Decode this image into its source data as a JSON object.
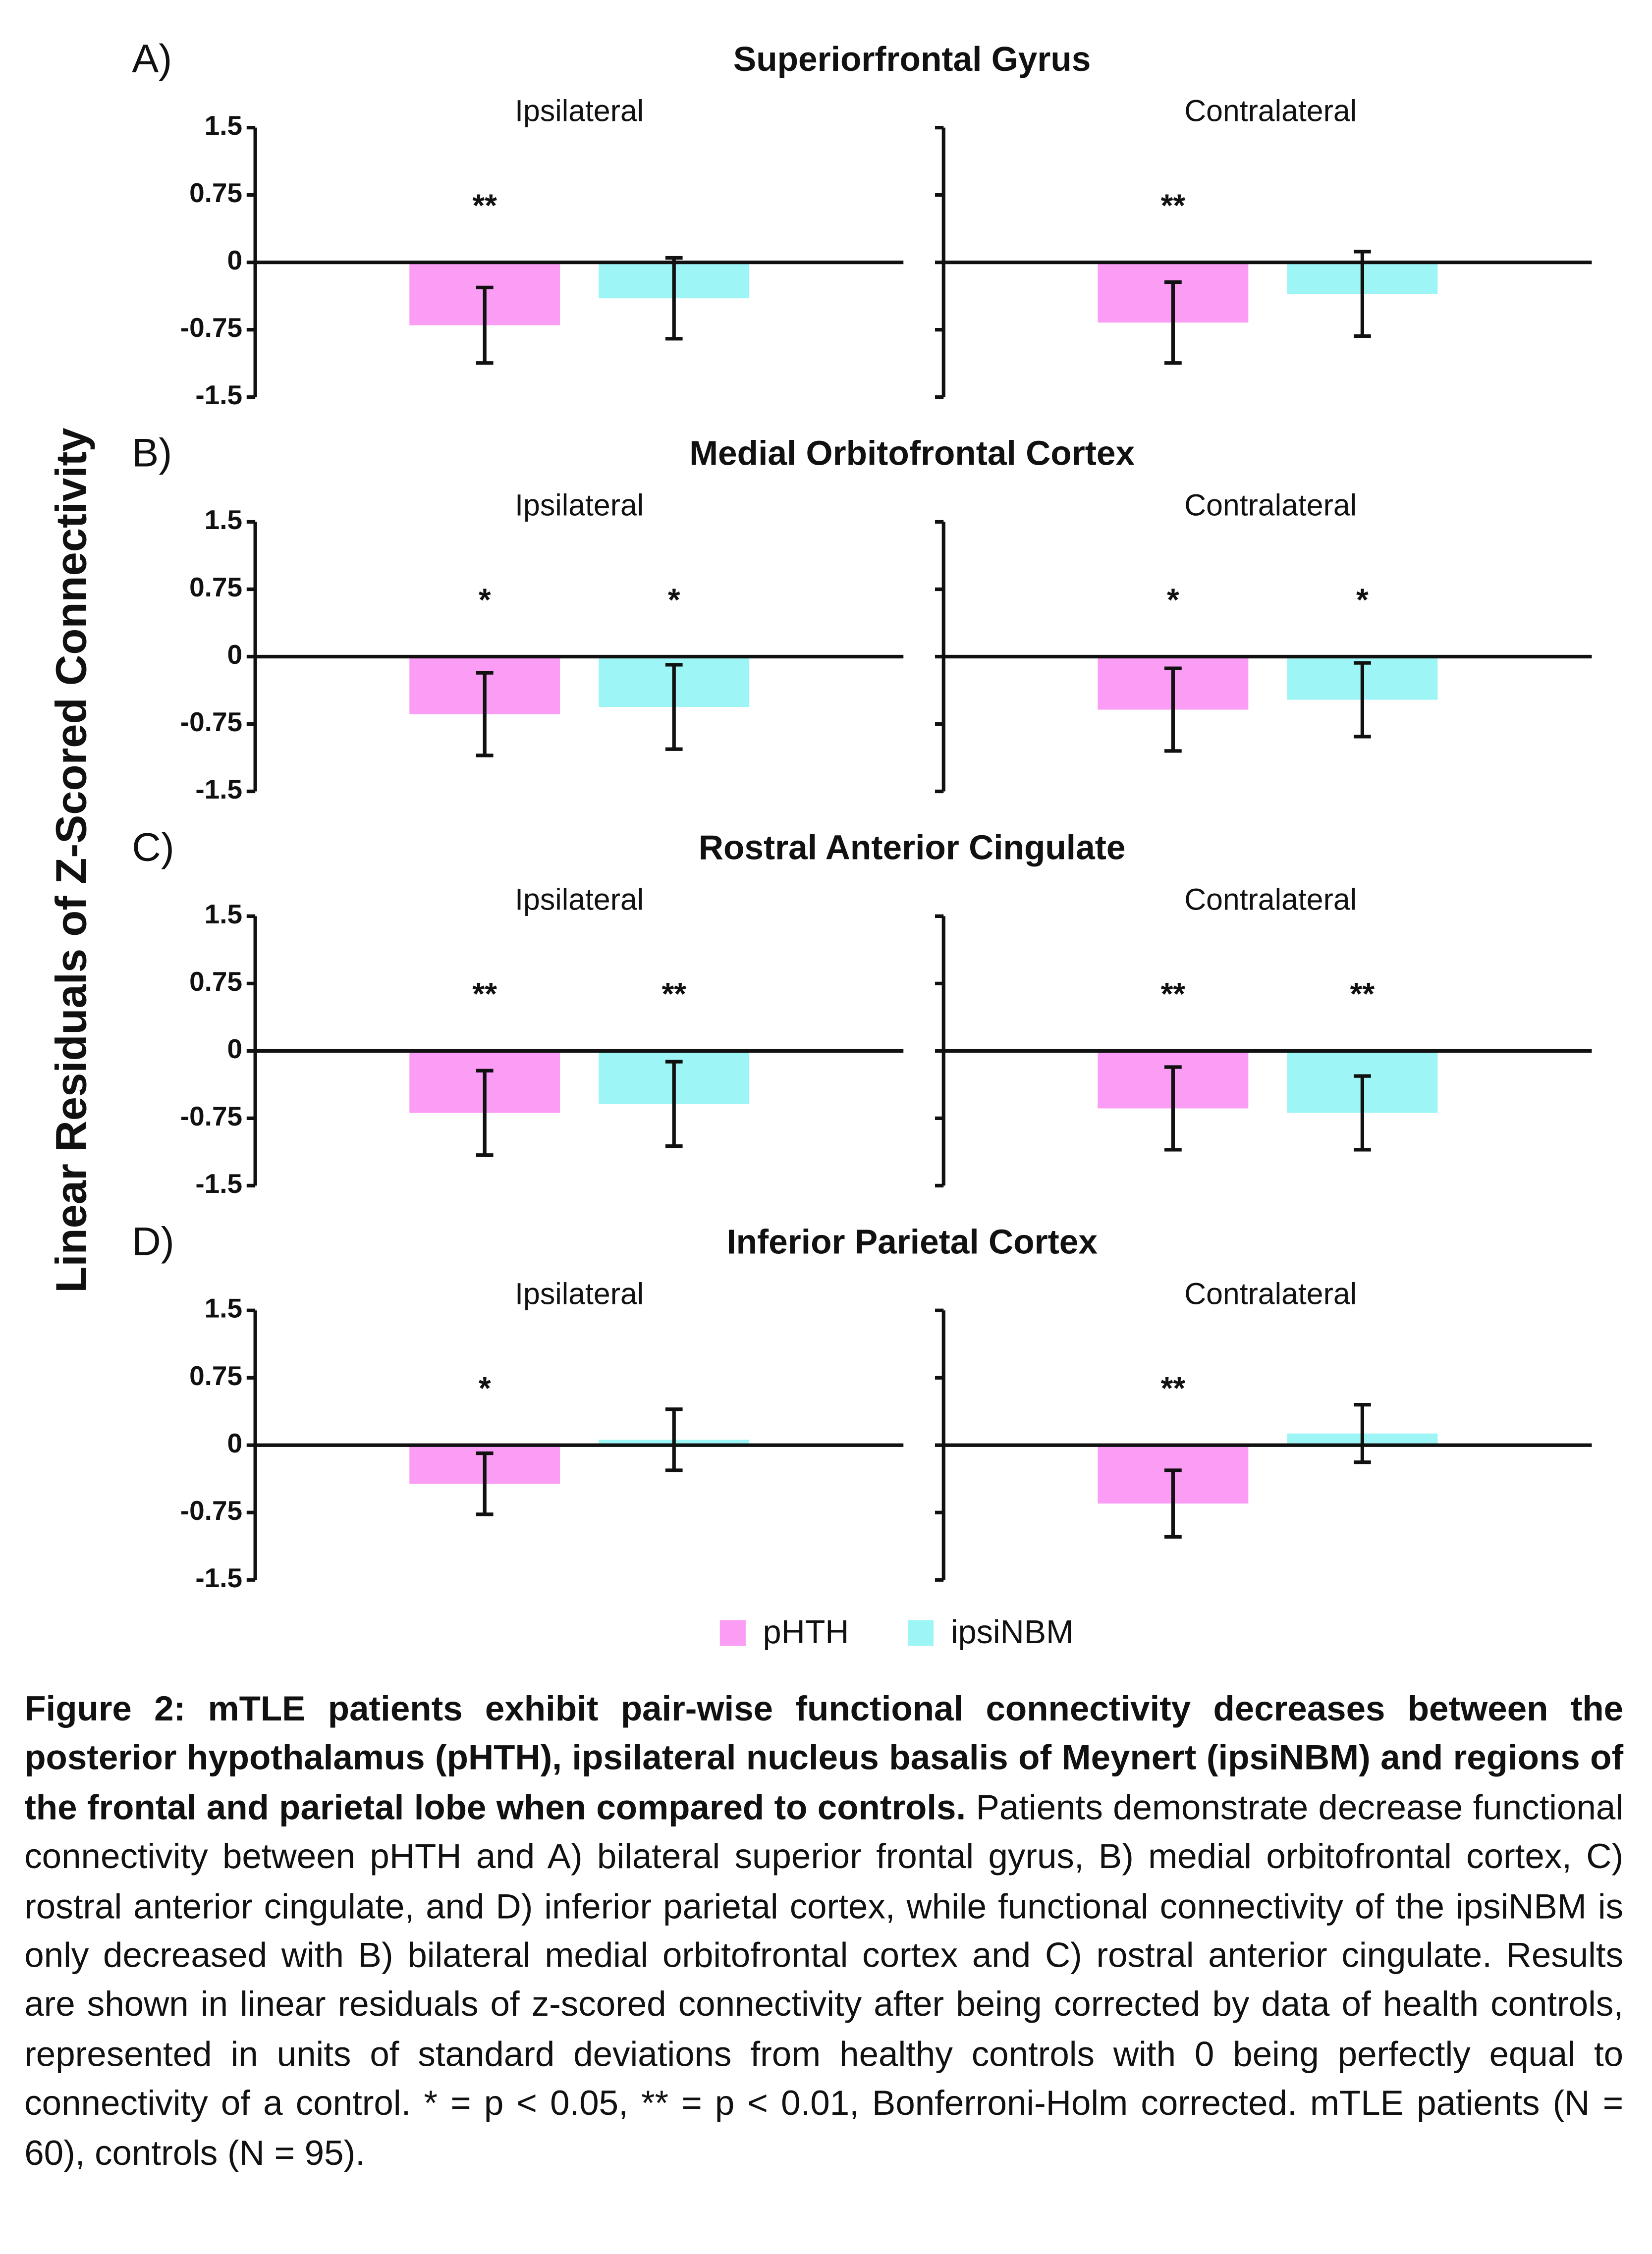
{
  "chart_data": [
    {
      "type": "bar",
      "panel": "A)",
      "title": "Superiorfrontal Gyrus",
      "subtitle": "Ipsilateral",
      "ylabel": "Linear Residuals of Z-Scored Connectivity",
      "ylim": [
        -1.5,
        1.5
      ],
      "yticks": [
        1.5,
        0.75,
        0,
        -0.75,
        -1.5
      ],
      "ytick_labels": true,
      "series": [
        {
          "name": "pHTH",
          "color": "#fb9cf5",
          "values": [
            -0.7
          ],
          "errors": [
            0.42
          ],
          "annotation": "**"
        },
        {
          "name": "ipsiNBM",
          "color": "#9ef5f5",
          "values": [
            -0.4
          ],
          "errors": [
            0.45
          ]
        }
      ]
    },
    {
      "type": "bar",
      "subtitle": "Contralateral",
      "ylim": [
        -1.5,
        1.5
      ],
      "yticks": [
        1.5,
        0.75,
        0,
        -0.75,
        -1.5
      ],
      "ytick_labels": false,
      "series": [
        {
          "name": "pHTH",
          "color": "#fb9cf5",
          "values": [
            -0.67
          ],
          "errors": [
            0.45
          ],
          "annotation": "**"
        },
        {
          "name": "ipsiNBM",
          "color": "#9ef5f5",
          "values": [
            -0.35
          ],
          "errors": [
            0.47
          ]
        }
      ]
    },
    {
      "type": "bar",
      "panel": "B)",
      "title": "Medial Orbitofrontal Cortex",
      "subtitle": "Ipsilateral",
      "ylim": [
        -1.5,
        1.5
      ],
      "yticks": [
        1.5,
        0.75,
        0,
        -0.75,
        -1.5
      ],
      "ytick_labels": true,
      "series": [
        {
          "name": "pHTH",
          "color": "#fb9cf5",
          "values": [
            -0.64
          ],
          "errors": [
            0.46
          ],
          "annotation": "*"
        },
        {
          "name": "ipsiNBM",
          "color": "#9ef5f5",
          "values": [
            -0.56
          ],
          "errors": [
            0.47
          ],
          "annotation": "*"
        }
      ]
    },
    {
      "type": "bar",
      "subtitle": "Contralateral",
      "ylim": [
        -1.5,
        1.5
      ],
      "yticks": [
        1.5,
        0.75,
        0,
        -0.75,
        -1.5
      ],
      "ytick_labels": false,
      "series": [
        {
          "name": "pHTH",
          "color": "#fb9cf5",
          "values": [
            -0.59
          ],
          "errors": [
            0.46
          ],
          "annotation": "*"
        },
        {
          "name": "ipsiNBM",
          "color": "#9ef5f5",
          "values": [
            -0.48
          ],
          "errors": [
            0.41
          ],
          "annotation": "*"
        }
      ]
    },
    {
      "type": "bar",
      "panel": "C)",
      "title": "Rostral Anterior Cingulate",
      "subtitle": "Ipsilateral",
      "ylim": [
        -1.5,
        1.5
      ],
      "yticks": [
        1.5,
        0.75,
        0,
        -0.75,
        -1.5
      ],
      "ytick_labels": true,
      "series": [
        {
          "name": "pHTH",
          "color": "#fb9cf5",
          "values": [
            -0.69
          ],
          "errors": [
            0.47
          ],
          "annotation": "**"
        },
        {
          "name": "ipsiNBM",
          "color": "#9ef5f5",
          "values": [
            -0.59
          ],
          "errors": [
            0.47
          ],
          "annotation": "**"
        }
      ]
    },
    {
      "type": "bar",
      "subtitle": "Contralateral",
      "ylim": [
        -1.5,
        1.5
      ],
      "yticks": [
        1.5,
        0.75,
        0,
        -0.75,
        -1.5
      ],
      "ytick_labels": false,
      "series": [
        {
          "name": "pHTH",
          "color": "#fb9cf5",
          "values": [
            -0.64
          ],
          "errors": [
            0.46
          ],
          "annotation": "**"
        },
        {
          "name": "ipsiNBM",
          "color": "#9ef5f5",
          "values": [
            -0.69
          ],
          "errors": [
            0.41
          ],
          "annotation": "**"
        }
      ]
    },
    {
      "type": "bar",
      "panel": "D)",
      "title": "Inferior Parietal Cortex",
      "subtitle": "Ipsilateral",
      "ylim": [
        -1.5,
        1.5
      ],
      "yticks": [
        1.5,
        0.75,
        0,
        -0.75,
        -1.5
      ],
      "ytick_labels": true,
      "series": [
        {
          "name": "pHTH",
          "color": "#fb9cf5",
          "values": [
            -0.43
          ],
          "errors": [
            0.34
          ],
          "annotation": "*"
        },
        {
          "name": "ipsiNBM",
          "color": "#9ef5f5",
          "values": [
            0.06
          ],
          "errors": [
            0.34
          ]
        }
      ]
    },
    {
      "type": "bar",
      "subtitle": "Contralateral",
      "ylim": [
        -1.5,
        1.5
      ],
      "yticks": [
        1.5,
        0.75,
        0,
        -0.75,
        -1.5
      ],
      "ytick_labels": false,
      "series": [
        {
          "name": "pHTH",
          "color": "#fb9cf5",
          "values": [
            -0.65
          ],
          "errors": [
            0.37
          ],
          "annotation": "**"
        },
        {
          "name": "ipsiNBM",
          "color": "#9ef5f5",
          "values": [
            0.13
          ],
          "errors": [
            0.32
          ]
        }
      ]
    }
  ],
  "caption": {
    "bold": "Figure 2: mTLE patients exhibit pair-wise functional connectivity decreases between the posterior hypothalamus (pHTH), ipsilateral nucleus basalis of Meynert (ipsiNBM) and regions of the frontal and parietal lobe when compared to controls.",
    "text": "Patients demonstrate decrease functional connectivity between pHTH and A) bilateral superior frontal gyrus, B) medial orbitofrontal cortex, C) rostral anterior cingulate, and D) inferior parietal cortex, while functional connectivity of the ipsiNBM is only decreased with B) bilateral medial orbitofrontal cortex and C) rostral anterior cingulate. Results are shown in linear residuals of z-scored connectivity after being corrected by data of health controls, represented in units of standard deviations from healthy controls with 0 being perfectly equal to connectivity of a control. * = p < 0.05, ** = p < 0.01, Bonferroni-Holm corrected. mTLE patients (N = 60), controls (N = 95)."
  }
}
